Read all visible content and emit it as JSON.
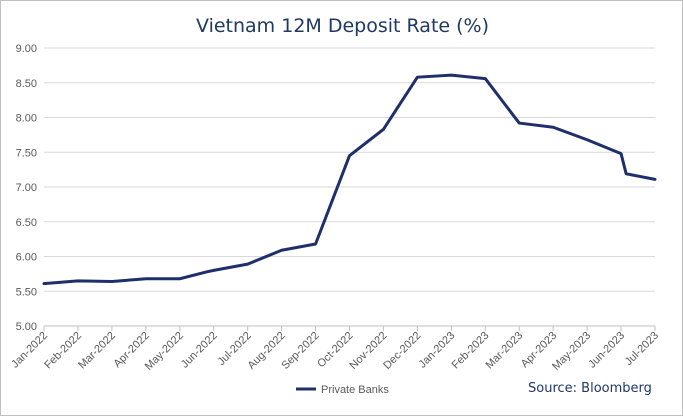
{
  "chart_data": {
    "type": "line",
    "title": "Vietnam 12M Deposit Rate (%)",
    "categories": [
      "Jan-2022",
      "Feb-2022",
      "Mar-2022",
      "Apr-2022",
      "May-2022",
      "Jun-2022",
      "Jul-2022",
      "Aug-2022",
      "Sep-2022",
      "Oct-2022",
      "Nov-2022",
      "Dec-2022",
      "Jan-2023",
      "Feb-2023",
      "Mar-2023",
      "Apr-2023",
      "May-2023",
      "Jun-2023",
      "Jul-2023"
    ],
    "x": [
      0,
      1,
      2,
      3,
      4,
      4.8,
      5.0,
      6.0,
      7.0,
      8.0,
      9.0,
      10.0,
      11.0,
      12.0,
      13.0,
      14.0,
      15.0,
      16.0,
      17.0,
      17.15,
      18.0
    ],
    "series": [
      {
        "name": "Private Banks",
        "color": "#1f2f6b",
        "values": [
          5.61,
          5.65,
          5.64,
          5.68,
          5.68,
          5.78,
          5.8,
          5.89,
          6.09,
          6.18,
          7.45,
          7.83,
          8.58,
          8.61,
          8.56,
          7.92,
          7.86,
          7.68,
          7.48,
          7.19,
          7.11
        ]
      }
    ],
    "ylim": [
      5.0,
      9.0
    ],
    "yticks": [
      "5.00",
      "5.50",
      "6.00",
      "6.50",
      "7.00",
      "7.50",
      "8.00",
      "8.50",
      "9.00"
    ],
    "grid": true,
    "legend_position": "bottom-left",
    "source": "Source: Bloomberg"
  }
}
